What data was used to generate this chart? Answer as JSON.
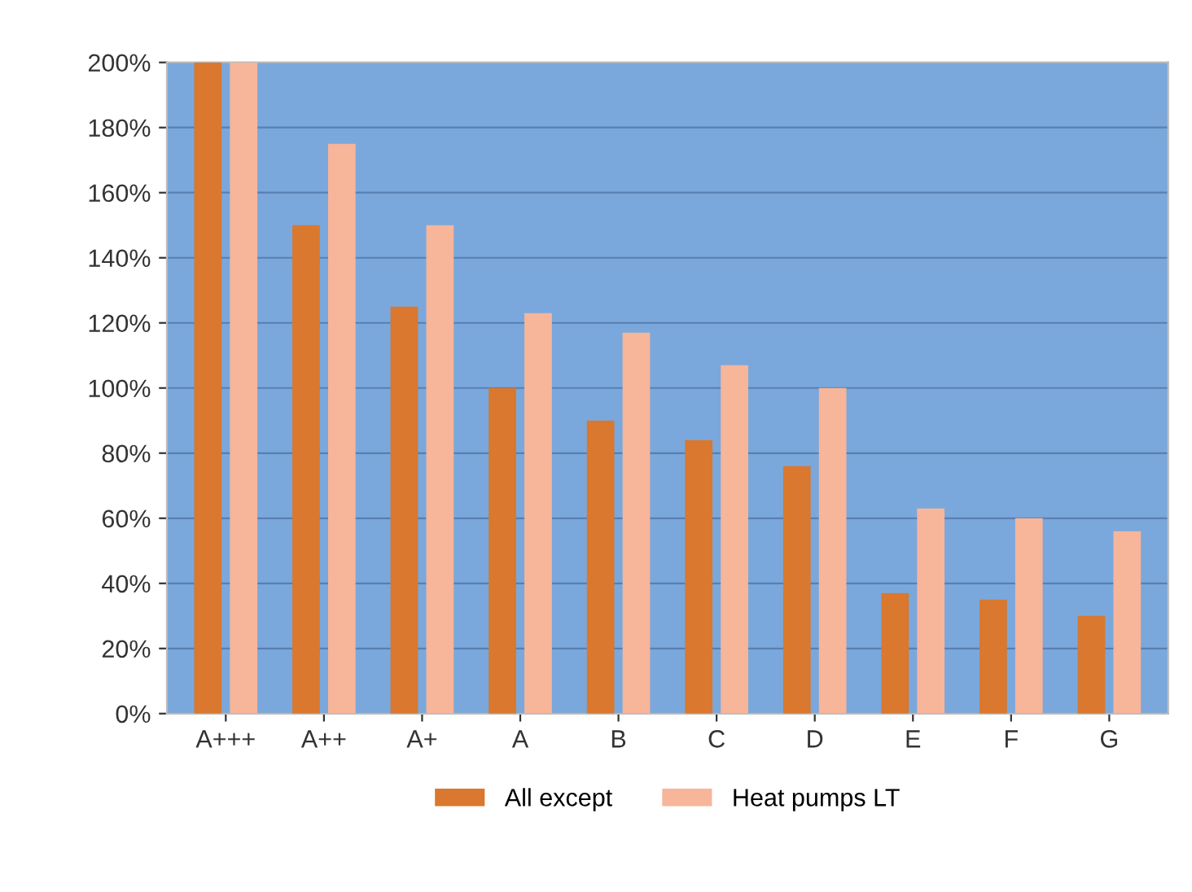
{
  "chart_data": {
    "type": "bar",
    "categories": [
      "A+++",
      "A++",
      "A+",
      "A",
      "B",
      "C",
      "D",
      "E",
      "F",
      "G"
    ],
    "series": [
      {
        "name": "All except",
        "color": "#d9782e",
        "values": [
          200,
          150,
          125,
          100,
          90,
          84,
          76,
          37,
          35,
          30
        ]
      },
      {
        "name": "Heat pumps LT",
        "color": "#f7b59a",
        "values": [
          200,
          175,
          150,
          123,
          117,
          107,
          100,
          63,
          60,
          56
        ]
      }
    ],
    "ylim": [
      0,
      200
    ],
    "yticks": [
      {
        "value": 0,
        "label": "0%"
      },
      {
        "value": 20,
        "label": "20%"
      },
      {
        "value": 40,
        "label": "40%"
      },
      {
        "value": 60,
        "label": "60%"
      },
      {
        "value": 80,
        "label": "80%"
      },
      {
        "value": 100,
        "label": "100%"
      },
      {
        "value": 120,
        "label": "120%"
      },
      {
        "value": 140,
        "label": "140%"
      },
      {
        "value": 160,
        "label": "160%"
      },
      {
        "value": 180,
        "label": "180%"
      },
      {
        "value": 200,
        "label": "200%"
      }
    ],
    "grid": "y",
    "legend": "bottom"
  }
}
